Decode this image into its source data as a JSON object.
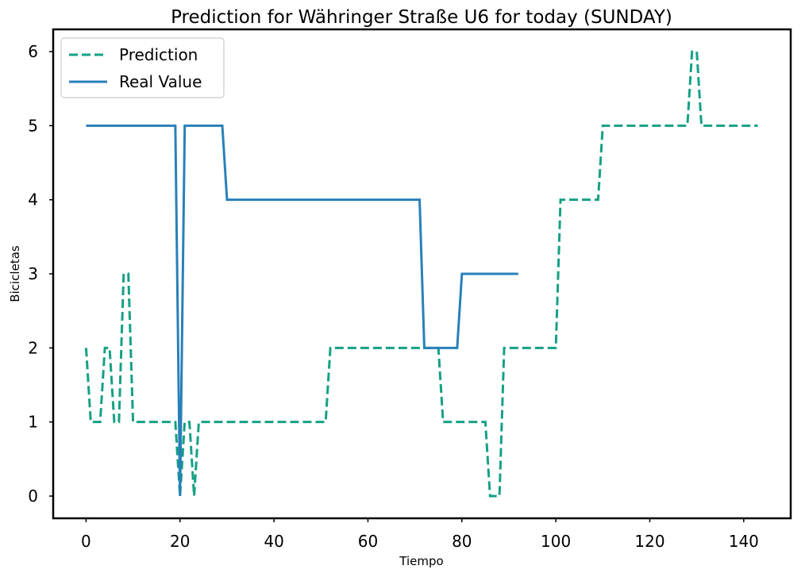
{
  "chart_data": {
    "type": "line",
    "title": "Prediction for Währinger Straße U6 for today (SUNDAY)",
    "xlabel": "Tiempo",
    "ylabel": "Bicicletas",
    "xlim": [
      -7,
      150
    ],
    "ylim": [
      -0.3,
      6.3
    ],
    "x_ticks": [
      0,
      20,
      40,
      60,
      80,
      100,
      120,
      140
    ],
    "y_ticks": [
      0,
      1,
      2,
      3,
      4,
      5,
      6
    ],
    "grid": false,
    "legend_position": "top-left",
    "series": [
      {
        "name": "Prediction",
        "color": "#16a085",
        "style": "dashed",
        "x": [
          0,
          1,
          2,
          3,
          4,
          5,
          6,
          7,
          8,
          9,
          10,
          11,
          12,
          13,
          14,
          15,
          16,
          17,
          18,
          19,
          20,
          21,
          22,
          23,
          24,
          25,
          26,
          27,
          28,
          29,
          30,
          31,
          32,
          33,
          34,
          35,
          36,
          37,
          38,
          39,
          40,
          41,
          42,
          43,
          44,
          45,
          46,
          47,
          48,
          49,
          50,
          51,
          52,
          53,
          54,
          55,
          56,
          57,
          58,
          59,
          60,
          61,
          62,
          63,
          64,
          65,
          66,
          67,
          68,
          69,
          70,
          71,
          72,
          73,
          74,
          75,
          76,
          77,
          78,
          79,
          80,
          81,
          82,
          83,
          84,
          85,
          86,
          87,
          88,
          89,
          90,
          91,
          92,
          93,
          94,
          95,
          96,
          97,
          98,
          99,
          100,
          101,
          102,
          103,
          104,
          105,
          106,
          107,
          108,
          109,
          110,
          111,
          112,
          113,
          114,
          115,
          116,
          117,
          118,
          119,
          120,
          121,
          122,
          123,
          124,
          125,
          126,
          127,
          128,
          129,
          130,
          131,
          132,
          133,
          134,
          135,
          136,
          137,
          138,
          139,
          140,
          141,
          142,
          143
        ],
        "values": [
          2,
          1,
          1,
          1,
          2,
          2,
          1,
          1,
          3,
          3,
          1,
          1,
          1,
          1,
          1,
          1,
          1,
          1,
          1,
          1,
          0,
          1,
          1,
          0,
          1,
          1,
          1,
          1,
          1,
          1,
          1,
          1,
          1,
          1,
          1,
          1,
          1,
          1,
          1,
          1,
          1,
          1,
          1,
          1,
          1,
          1,
          1,
          1,
          1,
          1,
          1,
          1,
          2,
          2,
          2,
          2,
          2,
          2,
          2,
          2,
          2,
          2,
          2,
          2,
          2,
          2,
          2,
          2,
          2,
          2,
          2,
          2,
          2,
          2,
          2,
          2,
          1,
          1,
          1,
          1,
          1,
          1,
          1,
          1,
          1,
          1,
          0,
          0,
          0,
          2,
          2,
          2,
          2,
          2,
          2,
          2,
          2,
          2,
          2,
          2,
          2,
          4,
          4,
          4,
          4,
          4,
          4,
          4,
          4,
          4,
          5,
          5,
          5,
          5,
          5,
          5,
          5,
          5,
          5,
          5,
          5,
          5,
          5,
          5,
          5,
          5,
          5,
          5,
          5,
          6,
          6,
          5,
          5,
          5,
          5,
          5,
          5,
          5,
          5,
          5,
          5,
          5,
          5,
          5
        ]
      },
      {
        "name": "Real Value",
        "color": "#2980b9",
        "style": "solid",
        "x": [
          0,
          1,
          2,
          3,
          4,
          5,
          6,
          7,
          8,
          9,
          10,
          11,
          12,
          13,
          14,
          15,
          16,
          17,
          18,
          19,
          20,
          21,
          22,
          23,
          24,
          25,
          26,
          27,
          28,
          29,
          30,
          31,
          32,
          33,
          34,
          35,
          36,
          37,
          38,
          39,
          40,
          41,
          42,
          43,
          44,
          45,
          46,
          47,
          48,
          49,
          50,
          51,
          52,
          53,
          54,
          55,
          56,
          57,
          58,
          59,
          60,
          61,
          62,
          63,
          64,
          65,
          66,
          67,
          68,
          69,
          70,
          71,
          72,
          73,
          74,
          75,
          76,
          77,
          78,
          79,
          80,
          81,
          82,
          83,
          84,
          85,
          86,
          87,
          88,
          89,
          90,
          91,
          92
        ],
        "values": [
          5,
          5,
          5,
          5,
          5,
          5,
          5,
          5,
          5,
          5,
          5,
          5,
          5,
          5,
          5,
          5,
          5,
          5,
          5,
          5,
          0,
          5,
          5,
          5,
          5,
          5,
          5,
          5,
          5,
          5,
          4,
          4,
          4,
          4,
          4,
          4,
          4,
          4,
          4,
          4,
          4,
          4,
          4,
          4,
          4,
          4,
          4,
          4,
          4,
          4,
          4,
          4,
          4,
          4,
          4,
          4,
          4,
          4,
          4,
          4,
          4,
          4,
          4,
          4,
          4,
          4,
          4,
          4,
          4,
          4,
          4,
          4,
          2,
          2,
          2,
          2,
          2,
          2,
          2,
          2,
          3,
          3,
          3,
          3,
          3,
          3,
          3,
          3,
          3,
          3,
          3,
          3,
          3
        ]
      }
    ]
  }
}
